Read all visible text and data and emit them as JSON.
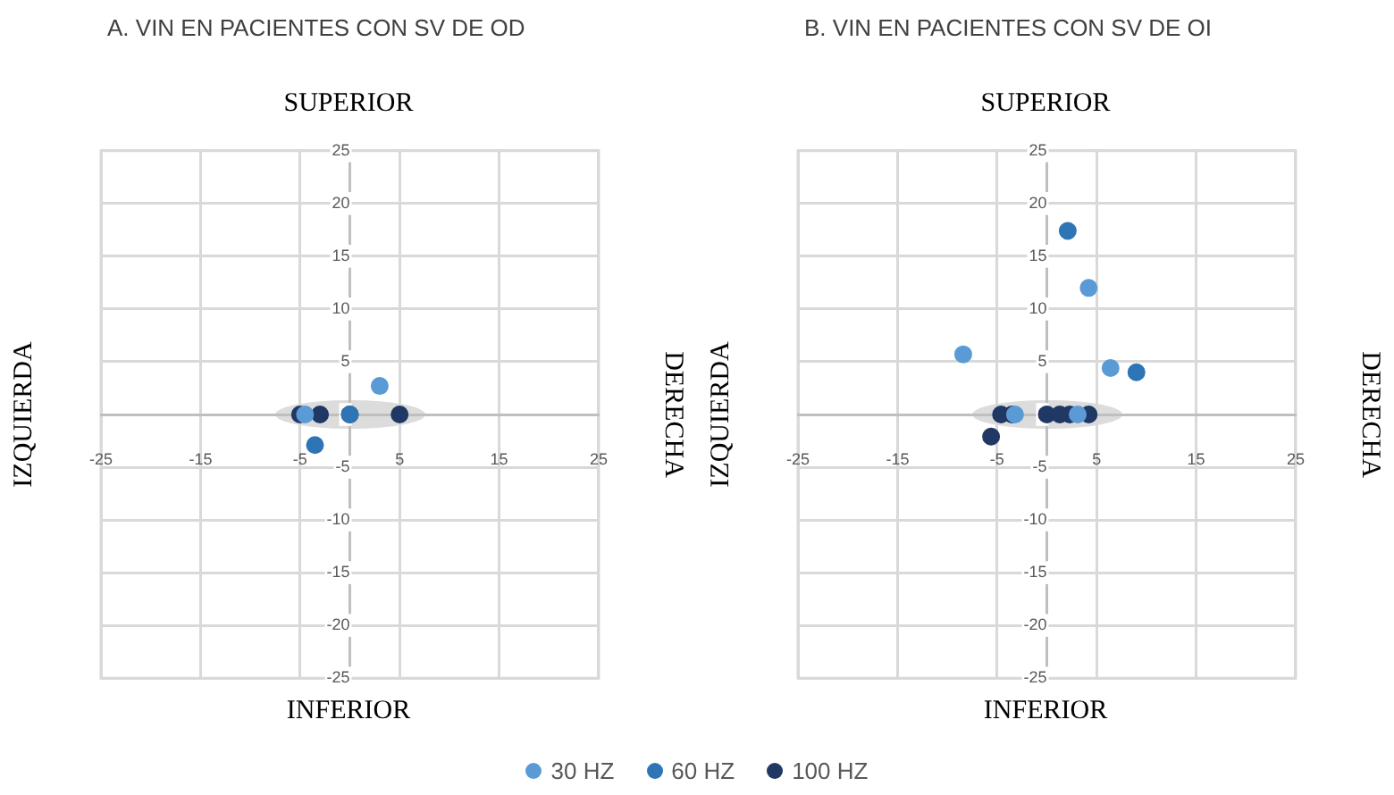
{
  "chart_data": [
    {
      "type": "scatter",
      "title": "A. VIN EN PACIENTES CON SV DE OD",
      "x2label": "SUPERIOR",
      "xlabel": "INFERIOR",
      "ylabel": "IZQUIERDA",
      "y2label": "DERECHA",
      "xlim": [
        -25,
        25
      ],
      "ylim": [
        -25,
        25
      ],
      "xticks": [
        -25,
        -15,
        -5,
        5,
        15,
        25
      ],
      "yticks": [
        -25,
        -20,
        -15,
        -10,
        -5,
        0,
        5,
        10,
        15,
        20,
        25
      ],
      "grid": true,
      "legend": "bottom",
      "marker": "circle",
      "series": [
        {
          "name": "30 HZ",
          "color": "#5b9bd5",
          "x": [
            3,
            -4.5
          ],
          "values": [
            2.7,
            0
          ]
        },
        {
          "name": "60 HZ",
          "color": "#2e75b6",
          "x": [
            -3.5,
            0
          ],
          "values": [
            -2.9,
            0
          ]
        },
        {
          "name": "100 HZ",
          "color": "#203864",
          "x": [
            -5,
            -3,
            0,
            5
          ],
          "values": [
            0,
            0,
            0,
            0
          ]
        }
      ]
    },
    {
      "type": "scatter",
      "title": "B. VIN EN PACIENTES CON SV DE OI",
      "x2label": "SUPERIOR",
      "xlabel": "INFERIOR",
      "ylabel": "IZQUIERDA",
      "y2label": "DERECHA",
      "xlim": [
        -25,
        25
      ],
      "ylim": [
        -25,
        25
      ],
      "xticks": [
        -25,
        -15,
        -5,
        5,
        15,
        25
      ],
      "yticks": [
        -25,
        -20,
        -15,
        -10,
        -5,
        0,
        5,
        10,
        15,
        20,
        25
      ],
      "grid": true,
      "legend": "bottom",
      "marker": "circle",
      "series": [
        {
          "name": "30 HZ",
          "color": "#5b9bd5",
          "x": [
            -8.4,
            4.2,
            6.4,
            -3.2,
            3.1
          ],
          "values": [
            5.7,
            12,
            4.4,
            0,
            0
          ]
        },
        {
          "name": "60 HZ",
          "color": "#2e75b6",
          "x": [
            2.1,
            9
          ],
          "values": [
            17.4,
            4
          ]
        },
        {
          "name": "100 HZ",
          "color": "#203864",
          "x": [
            -5.6,
            -4.6,
            -3.5,
            0,
            1.3,
            2.3,
            4.2
          ],
          "values": [
            -2.1,
            0,
            0,
            0,
            0,
            0,
            0
          ]
        }
      ]
    }
  ]
}
